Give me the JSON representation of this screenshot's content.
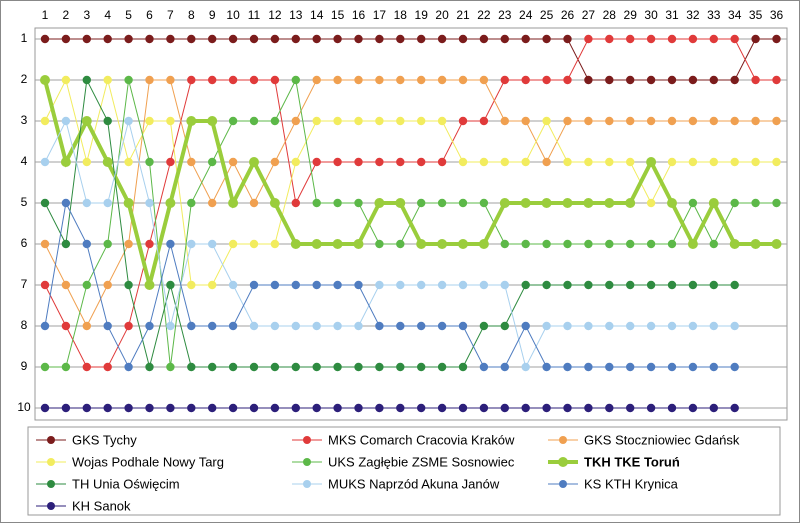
{
  "chart_data": {
    "type": "line",
    "categories": [
      1,
      2,
      3,
      4,
      5,
      6,
      7,
      8,
      9,
      10,
      11,
      12,
      13,
      14,
      15,
      16,
      17,
      18,
      19,
      20,
      21,
      22,
      23,
      24,
      25,
      26,
      27,
      28,
      29,
      30,
      31,
      32,
      33,
      34,
      35,
      36
    ],
    "ylim": [
      1,
      10
    ],
    "y_reversed": true,
    "yticks": [
      1,
      2,
      3,
      4,
      5,
      6,
      7,
      8,
      9,
      10
    ],
    "grid": true,
    "legend": "bottom",
    "series": [
      {
        "name": "GKS Tychy",
        "color": "#7b1c1c",
        "values": [
          1,
          1,
          1,
          1,
          1,
          1,
          1,
          1,
          1,
          1,
          1,
          1,
          1,
          1,
          1,
          1,
          1,
          1,
          1,
          1,
          1,
          1,
          1,
          1,
          1,
          1,
          2,
          2,
          2,
          2,
          2,
          2,
          2,
          2,
          1,
          1
        ]
      },
      {
        "name": "MKS Comarch Cracovia Kraków",
        "color": "#e03a3a",
        "values": [
          7,
          8,
          9,
          9,
          8,
          6,
          4,
          2,
          2,
          2,
          2,
          2,
          5,
          4,
          4,
          4,
          4,
          4,
          4,
          4,
          3,
          3,
          2,
          2,
          2,
          2,
          1,
          1,
          1,
          1,
          1,
          1,
          1,
          1,
          2,
          2
        ]
      },
      {
        "name": "GKS Stoczniowiec Gdańsk",
        "color": "#f0a050",
        "values": [
          6,
          7,
          8,
          7,
          6,
          2,
          2,
          4,
          5,
          4,
          5,
          4,
          3,
          2,
          2,
          2,
          2,
          2,
          2,
          2,
          2,
          2,
          3,
          3,
          4,
          3,
          3,
          3,
          3,
          3,
          3,
          3,
          3,
          3,
          3,
          3
        ]
      },
      {
        "name": "Wojas Podhale Nowy Targ",
        "color": "#f2ec5e",
        "values": [
          3,
          2,
          4,
          2,
          4,
          3,
          3,
          7,
          7,
          6,
          6,
          6,
          4,
          3,
          3,
          3,
          3,
          3,
          3,
          3,
          4,
          4,
          4,
          4,
          3,
          4,
          4,
          4,
          4,
          5,
          4,
          4,
          4,
          4,
          4,
          4
        ]
      },
      {
        "name": "UKS Zagłębie ZSME Sosnowiec",
        "color": "#5cb848",
        "values": [
          9,
          9,
          7,
          6,
          2,
          4,
          9,
          5,
          4,
          3,
          3,
          3,
          2,
          5,
          5,
          5,
          6,
          6,
          5,
          5,
          5,
          5,
          6,
          6,
          6,
          6,
          6,
          6,
          6,
          6,
          6,
          5,
          6,
          5,
          5,
          5
        ]
      },
      {
        "name": "TKH TKE Toruń",
        "color": "#9acd3c",
        "bold": true,
        "values": [
          2,
          4,
          3,
          4,
          5,
          7,
          5,
          3,
          3,
          5,
          4,
          5,
          6,
          6,
          6,
          6,
          5,
          5,
          6,
          6,
          6,
          6,
          5,
          5,
          5,
          5,
          5,
          5,
          5,
          4,
          5,
          6,
          5,
          6,
          6,
          6
        ]
      },
      {
        "name": "TH Unia Oświęcim",
        "color": "#2e8b40",
        "values": [
          5,
          6,
          2,
          3,
          7,
          9,
          7,
          9,
          9,
          9,
          9,
          9,
          9,
          9,
          9,
          9,
          9,
          9,
          9,
          9,
          9,
          8,
          8,
          7,
          7,
          7,
          7,
          7,
          7,
          7,
          7,
          7,
          7,
          7,
          null,
          null
        ]
      },
      {
        "name": "MUKS Naprzód Akuna Janów",
        "color": "#a8d0ee",
        "values": [
          4,
          3,
          5,
          5,
          3,
          5,
          8,
          6,
          6,
          7,
          8,
          8,
          8,
          8,
          8,
          8,
          7,
          7,
          7,
          7,
          7,
          7,
          7,
          9,
          8,
          8,
          8,
          8,
          8,
          8,
          8,
          8,
          8,
          8,
          null,
          null
        ]
      },
      {
        "name": "KS KTH Krynica",
        "color": "#4f7cc0",
        "values": [
          8,
          5,
          6,
          8,
          9,
          8,
          6,
          8,
          8,
          8,
          7,
          7,
          7,
          7,
          7,
          7,
          8,
          8,
          8,
          8,
          8,
          9,
          9,
          8,
          9,
          9,
          9,
          9,
          9,
          9,
          9,
          9,
          9,
          9,
          null,
          null
        ]
      },
      {
        "name": "KH Sanok",
        "color": "#2c1f7a",
        "values": [
          10,
          10,
          10,
          10,
          10,
          10,
          10,
          10,
          10,
          10,
          10,
          10,
          10,
          10,
          10,
          10,
          10,
          10,
          10,
          10,
          10,
          10,
          10,
          10,
          10,
          10,
          10,
          10,
          10,
          10,
          10,
          10,
          10,
          10,
          null,
          null
        ]
      }
    ]
  }
}
